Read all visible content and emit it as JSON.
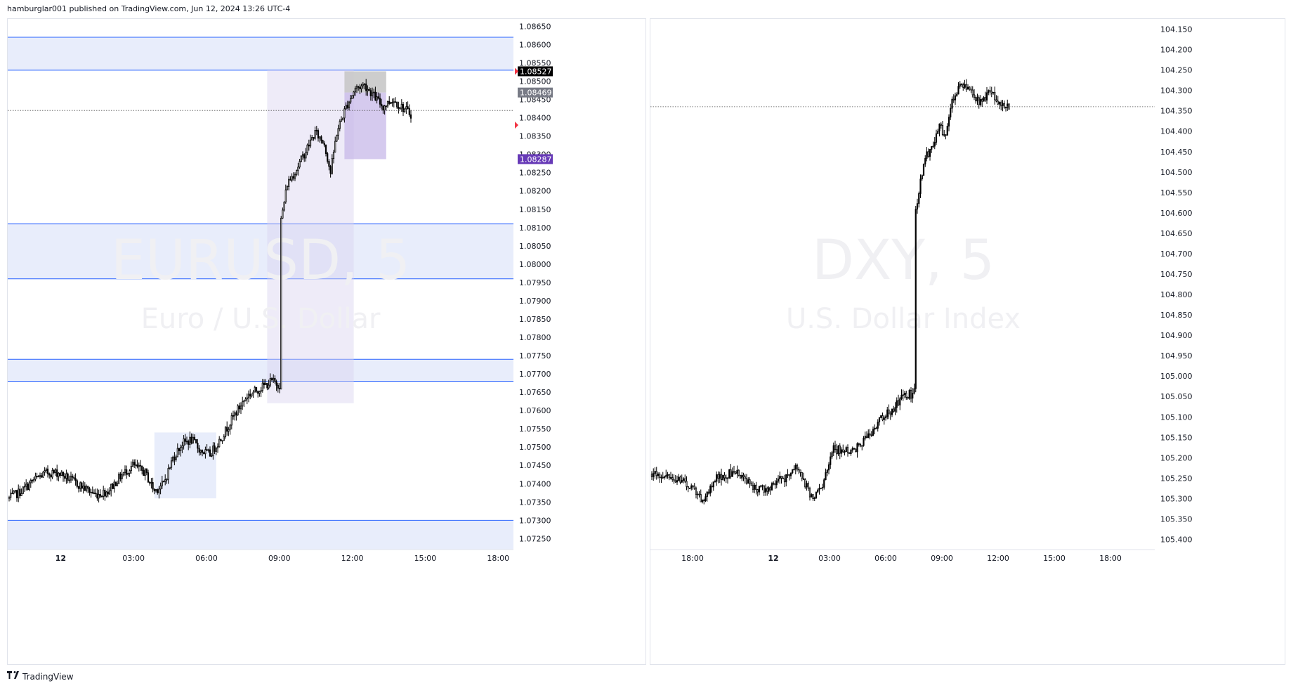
{
  "header": {
    "text": "hamburglar001 published on TradingView.com, Jun 12, 2024 13:26 UTC-4"
  },
  "footer": {
    "logo_icon": "tradingview-logo-icon",
    "brand": "TradingView"
  },
  "charts": {
    "left": {
      "symbol_watermark": "EURUSD, 5",
      "name_watermark": "Euro / U.S. Dollar",
      "price_ticks": [
        "1.08650",
        "1.08600",
        "1.08550",
        "1.08500",
        "1.08450",
        "1.08400",
        "1.08350",
        "1.08300",
        "1.08250",
        "1.08200",
        "1.08150",
        "1.08100",
        "1.08050",
        "1.08000",
        "1.07950",
        "1.07900",
        "1.07850",
        "1.07800",
        "1.07750",
        "1.07700",
        "1.07650",
        "1.07600",
        "1.07550",
        "1.07500",
        "1.07450",
        "1.07400",
        "1.07350",
        "1.07300",
        "1.07250"
      ],
      "time_ticks": [
        {
          "label": "12",
          "bold": true
        },
        {
          "label": "03:00"
        },
        {
          "label": "06:00"
        },
        {
          "label": "09:00"
        },
        {
          "label": "12:00"
        },
        {
          "label": "15:00"
        },
        {
          "label": "18:00"
        }
      ],
      "price_tags": [
        {
          "label": "1.08527",
          "bg": "#000000",
          "fg": "#ffffff"
        },
        {
          "label": "1.08469",
          "bg": "#787b86",
          "fg": "#ffffff"
        },
        {
          "label": "1.08287",
          "bg": "#673ab7",
          "fg": "#ffffff"
        }
      ]
    },
    "right": {
      "symbol_watermark": "DXY, 5",
      "name_watermark": "U.S. Dollar Index",
      "price_ticks": [
        "104.150",
        "104.200",
        "104.250",
        "104.300",
        "104.350",
        "104.400",
        "104.450",
        "104.500",
        "104.550",
        "104.600",
        "104.650",
        "104.700",
        "104.750",
        "104.800",
        "104.850",
        "104.900",
        "104.950",
        "105.000",
        "105.050",
        "105.100",
        "105.150",
        "105.200",
        "105.250",
        "105.300",
        "105.350",
        "105.400"
      ],
      "time_ticks": [
        {
          "label": "18:00"
        },
        {
          "label": "12",
          "bold": true
        },
        {
          "label": "03:00"
        },
        {
          "label": "06:00"
        },
        {
          "label": "09:00"
        },
        {
          "label": "12:00"
        },
        {
          "label": "15:00"
        },
        {
          "label": "18:00"
        }
      ]
    }
  },
  "colors": {
    "zone_fill": "#e8edfb",
    "zone_line": "#2962ff",
    "session_fill": "#ede9f7",
    "candle": "#000000",
    "watermark": "#f0f0f3"
  },
  "chart_data": [
    {
      "type": "candlestick",
      "symbol": "EURUSD, 5",
      "title": "Euro / U.S. Dollar",
      "ylim": [
        1.0722,
        1.0867
      ],
      "y_scale": "normal",
      "x_ticks": [
        "12",
        "03:00",
        "06:00",
        "09:00",
        "12:00",
        "15:00",
        "18:00"
      ],
      "anchors": [
        [
          0,
          1.0736
        ],
        [
          8,
          1.0738
        ],
        [
          16,
          1.0741
        ],
        [
          24,
          1.0743
        ],
        [
          32,
          1.0743
        ],
        [
          40,
          1.0741
        ],
        [
          48,
          1.0739
        ],
        [
          56,
          1.0737
        ],
        [
          64,
          1.0738
        ],
        [
          72,
          1.0742
        ],
        [
          80,
          1.0745
        ],
        [
          88,
          1.0743
        ],
        [
          94,
          1.0738
        ],
        [
          100,
          1.074
        ],
        [
          106,
          1.0747
        ],
        [
          112,
          1.0751
        ],
        [
          118,
          1.0752
        ],
        [
          124,
          1.0749
        ],
        [
          130,
          1.0748
        ],
        [
          138,
          1.0753
        ],
        [
          146,
          1.0759
        ],
        [
          154,
          1.0764
        ],
        [
          162,
          1.0766
        ],
        [
          170,
          1.0768
        ],
        [
          175,
          1.0767
        ],
        [
          176,
          1.0812
        ],
        [
          180,
          1.0822
        ],
        [
          186,
          1.0826
        ],
        [
          192,
          1.0831
        ],
        [
          198,
          1.0836
        ],
        [
          204,
          1.0833
        ],
        [
          208,
          1.0825
        ],
        [
          212,
          1.0836
        ],
        [
          218,
          1.0843
        ],
        [
          224,
          1.0848
        ],
        [
          230,
          1.0849
        ],
        [
          236,
          1.0846
        ],
        [
          242,
          1.0843
        ],
        [
          248,
          1.0845
        ],
        [
          254,
          1.0843
        ],
        [
          260,
          1.0841
        ]
      ],
      "zones": [
        [
          1.0853,
          1.0862
        ],
        [
          1.0796,
          1.0811
        ],
        [
          1.0768,
          1.0774
        ],
        [
          1.0722,
          1.073
        ]
      ],
      "session_box": {
        "x_range": [
          167,
          223
        ],
        "y_range": [
          1.0762,
          1.0853
        ]
      },
      "box_small": {
        "x_range": [
          94,
          134
        ],
        "y_range": [
          1.0736,
          1.0754
        ]
      },
      "position_box": {
        "x_range": [
          217,
          244
        ],
        "stop": [
          1.08469,
          1.08527
        ],
        "target": [
          1.08287,
          1.08469
        ]
      },
      "last_price_line": 1.0842,
      "price_tags": [
        1.08527,
        1.08469,
        1.08287
      ]
    },
    {
      "type": "candlestick",
      "symbol": "DXY, 5",
      "title": "U.S. Dollar Index",
      "ylim": [
        104.125,
        105.425
      ],
      "y_scale": "inverted",
      "x_ticks": [
        "18:00",
        "12",
        "03:00",
        "06:00",
        "09:00",
        "12:00",
        "15:00",
        "18:00"
      ],
      "anchors": [
        [
          0,
          105.24
        ],
        [
          8,
          105.25
        ],
        [
          16,
          105.25
        ],
        [
          24,
          105.27
        ],
        [
          28,
          105.29
        ],
        [
          32,
          105.3
        ],
        [
          36,
          105.28
        ],
        [
          40,
          105.25
        ],
        [
          48,
          105.24
        ],
        [
          56,
          105.24
        ],
        [
          64,
          105.27
        ],
        [
          72,
          105.28
        ],
        [
          78,
          105.26
        ],
        [
          84,
          105.25
        ],
        [
          90,
          105.22
        ],
        [
          96,
          105.26
        ],
        [
          102,
          105.3
        ],
        [
          108,
          105.27
        ],
        [
          114,
          105.18
        ],
        [
          120,
          105.18
        ],
        [
          128,
          105.18
        ],
        [
          136,
          105.15
        ],
        [
          144,
          105.11
        ],
        [
          152,
          105.08
        ],
        [
          160,
          105.05
        ],
        [
          166,
          105.04
        ],
        [
          167,
          104.59
        ],
        [
          170,
          104.52
        ],
        [
          174,
          104.46
        ],
        [
          178,
          104.43
        ],
        [
          182,
          104.38
        ],
        [
          186,
          104.42
        ],
        [
          190,
          104.32
        ],
        [
          196,
          104.28
        ],
        [
          202,
          104.3
        ],
        [
          208,
          104.33
        ],
        [
          214,
          104.3
        ],
        [
          220,
          104.33
        ],
        [
          226,
          104.34
        ]
      ],
      "last_price_line": 104.34
    }
  ]
}
